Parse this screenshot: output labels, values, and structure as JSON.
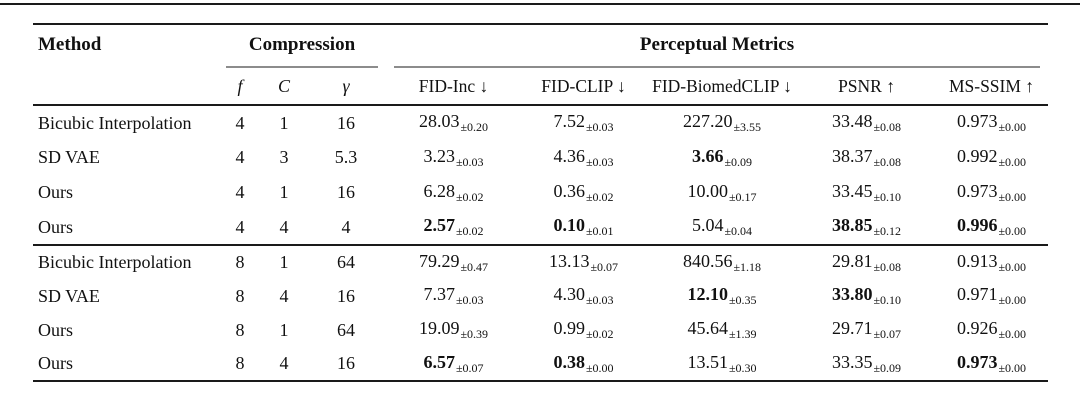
{
  "table": {
    "header": {
      "method": "Method",
      "compression": "Compression",
      "perceptual": "Perceptual Metrics",
      "sub_columns": {
        "compression": [
          "f",
          "C",
          "γ"
        ],
        "metrics": [
          "FID-Inc ↓",
          "FID-CLIP ↓",
          "FID-BiomedCLIP ↓",
          "PSNR ↑",
          "MS-SSIM ↑"
        ]
      }
    },
    "rule_colors": {
      "heavy": "#1a1a1a",
      "light": "#8c8c8c"
    },
    "groups": [
      {
        "rows": [
          {
            "method": "Bicubic Interpolation",
            "f": "4",
            "C": "1",
            "gamma": "16",
            "metrics": [
              {
                "v": "28.03",
                "e": "±0.20",
                "b": false
              },
              {
                "v": "7.52",
                "e": "±0.03",
                "b": false
              },
              {
                "v": "227.20",
                "e": "±3.55",
                "b": false
              },
              {
                "v": "33.48",
                "e": "±0.08",
                "b": false
              },
              {
                "v": "0.973",
                "e": "±0.00",
                "b": false
              }
            ]
          },
          {
            "method": "SD VAE",
            "f": "4",
            "C": "3",
            "gamma": "5.3",
            "metrics": [
              {
                "v": "3.23",
                "e": "±0.03",
                "b": false
              },
              {
                "v": "4.36",
                "e": "±0.03",
                "b": false
              },
              {
                "v": "3.66",
                "e": "±0.09",
                "b": true
              },
              {
                "v": "38.37",
                "e": "±0.08",
                "b": false
              },
              {
                "v": "0.992",
                "e": "±0.00",
                "b": false
              }
            ]
          },
          {
            "method": "Ours",
            "f": "4",
            "C": "1",
            "gamma": "16",
            "metrics": [
              {
                "v": "6.28",
                "e": "±0.02",
                "b": false
              },
              {
                "v": "0.36",
                "e": "±0.02",
                "b": false
              },
              {
                "v": "10.00",
                "e": "±0.17",
                "b": false
              },
              {
                "v": "33.45",
                "e": "±0.10",
                "b": false
              },
              {
                "v": "0.973",
                "e": "±0.00",
                "b": false
              }
            ]
          },
          {
            "method": "Ours",
            "f": "4",
            "C": "4",
            "gamma": "4",
            "metrics": [
              {
                "v": "2.57",
                "e": "±0.02",
                "b": true
              },
              {
                "v": "0.10",
                "e": "±0.01",
                "b": true
              },
              {
                "v": "5.04",
                "e": "±0.04",
                "b": false
              },
              {
                "v": "38.85",
                "e": "±0.12",
                "b": true
              },
              {
                "v": "0.996",
                "e": "±0.00",
                "b": true
              }
            ]
          }
        ]
      },
      {
        "rows": [
          {
            "method": "Bicubic Interpolation",
            "f": "8",
            "C": "1",
            "gamma": "64",
            "metrics": [
              {
                "v": "79.29",
                "e": "±0.47",
                "b": false
              },
              {
                "v": "13.13",
                "e": "±0.07",
                "b": false
              },
              {
                "v": "840.56",
                "e": "±1.18",
                "b": false
              },
              {
                "v": "29.81",
                "e": "±0.08",
                "b": false
              },
              {
                "v": "0.913",
                "e": "±0.00",
                "b": false
              }
            ]
          },
          {
            "method": "SD VAE",
            "f": "8",
            "C": "4",
            "gamma": "16",
            "metrics": [
              {
                "v": "7.37",
                "e": "±0.03",
                "b": false
              },
              {
                "v": "4.30",
                "e": "±0.03",
                "b": false
              },
              {
                "v": "12.10",
                "e": "±0.35",
                "b": true
              },
              {
                "v": "33.80",
                "e": "±0.10",
                "b": true
              },
              {
                "v": "0.971",
                "e": "±0.00",
                "b": false
              }
            ]
          },
          {
            "method": "Ours",
            "f": "8",
            "C": "1",
            "gamma": "64",
            "metrics": [
              {
                "v": "19.09",
                "e": "±0.39",
                "b": false
              },
              {
                "v": "0.99",
                "e": "±0.02",
                "b": false
              },
              {
                "v": "45.64",
                "e": "±1.39",
                "b": false
              },
              {
                "v": "29.71",
                "e": "±0.07",
                "b": false
              },
              {
                "v": "0.926",
                "e": "±0.00",
                "b": false
              }
            ]
          },
          {
            "method": "Ours",
            "f": "8",
            "C": "4",
            "gamma": "16",
            "metrics": [
              {
                "v": "6.57",
                "e": "±0.07",
                "b": true
              },
              {
                "v": "0.38",
                "e": "±0.00",
                "b": true
              },
              {
                "v": "13.51",
                "e": "±0.30",
                "b": false
              },
              {
                "v": "33.35",
                "e": "±0.09",
                "b": false
              },
              {
                "v": "0.973",
                "e": "±0.00",
                "b": true
              }
            ]
          }
        ]
      }
    ]
  }
}
